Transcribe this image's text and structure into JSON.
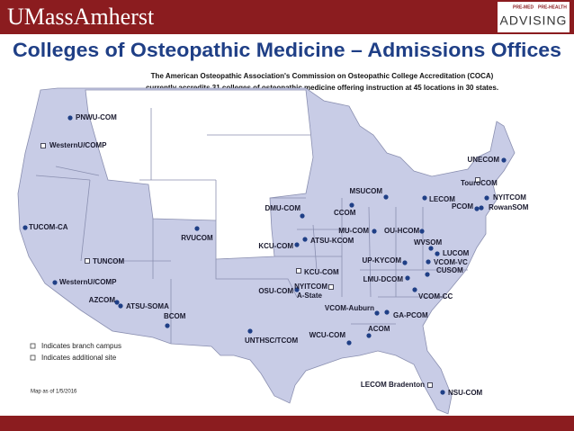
{
  "header": {
    "brand": "UMassAmherst",
    "logo_small_left": "PRE-MED",
    "logo_small_right": "PRE-HEALTH",
    "logo_main": "ADVISING"
  },
  "title": "Colleges of Osteopathic Medicine – Admissions Offices",
  "subtitle": [
    "The American Osteopathic Association's Commission on Osteopathic College Accreditation (COCA)",
    "currently accredits 31 colleges of osteopathic medicine offering instruction at 45 locations in 30 states."
  ],
  "locations": [
    {
      "label": "PNWU-COM",
      "marker": "dot"
    },
    {
      "label": "WesternU/COMP",
      "marker": "square"
    },
    {
      "label": "TUCOM-CA",
      "marker": "dot"
    },
    {
      "label": "TUNCOM",
      "marker": "square"
    },
    {
      "label": "WesternU/COMP",
      "marker": "dot"
    },
    {
      "label": "AZCOM",
      "marker": "dot"
    },
    {
      "label": "ATSU-SOMA",
      "marker": "dot"
    },
    {
      "label": "BCOM",
      "marker": "dot"
    },
    {
      "label": "RVUCOM",
      "marker": "dot"
    },
    {
      "label": "KCU-COM",
      "marker": "dot"
    },
    {
      "label": "DMU-COM",
      "marker": "dot"
    },
    {
      "label": "CCOM",
      "marker": "dot"
    },
    {
      "label": "ATSU-KCOM",
      "marker": "dot"
    },
    {
      "label": "MU-COM",
      "marker": "dot"
    },
    {
      "label": "OU-HCOM",
      "marker": "dot"
    },
    {
      "label": "MSUCOM",
      "marker": "dot"
    },
    {
      "label": "LECOM",
      "marker": "dot"
    },
    {
      "label": "TouroCOM",
      "marker": "square"
    },
    {
      "label": "NYITCOM",
      "marker": "dot"
    },
    {
      "label": "PCOM",
      "marker": "dot"
    },
    {
      "label": "RowanSOM",
      "marker": "dot"
    },
    {
      "label": "UNECOM",
      "marker": "dot"
    },
    {
      "label": "WVSOM",
      "marker": "dot"
    },
    {
      "label": "LUCOM",
      "marker": "dot"
    },
    {
      "label": "UP-KYCOM",
      "marker": "dot"
    },
    {
      "label": "VCOM-VC",
      "marker": "dot"
    },
    {
      "label": "CUSOM",
      "marker": "dot"
    },
    {
      "label": "LMU-DCOM",
      "marker": "dot"
    },
    {
      "label": "KCU-COM",
      "marker": "square"
    },
    {
      "label": "OSU-COM",
      "marker": "dot"
    },
    {
      "label": "NYITCOM",
      "sublabel": "A-State",
      "marker": "square"
    },
    {
      "label": "VCOM-CC",
      "marker": "dot"
    },
    {
      "label": "VCOM-Auburn",
      "marker": "dot"
    },
    {
      "label": "GA-PCOM",
      "marker": "dot"
    },
    {
      "label": "ACOM",
      "marker": "dot"
    },
    {
      "label": "WCU-COM",
      "marker": "dot"
    },
    {
      "label": "UNTHSC/TCOM",
      "marker": "dot"
    },
    {
      "label": "LECOM Bradenton",
      "marker": "square"
    },
    {
      "label": "NSU-COM",
      "marker": "dot"
    }
  ],
  "legend": [
    {
      "marker": "square",
      "label": "Indicates branch campus"
    },
    {
      "marker": "square",
      "label": "Indicates additional site"
    }
  ],
  "note": "Map as of 1/5/2016"
}
